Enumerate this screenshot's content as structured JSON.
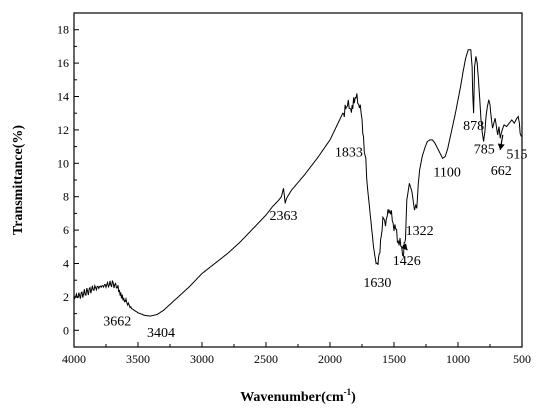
{
  "chart_data": {
    "type": "line",
    "title": "",
    "xlabel": "Wavenumber(cm",
    "xlabel_sup": "-1",
    "xlabel_close": ")",
    "ylabel": "Transmittance(%)",
    "xlim": [
      4000,
      500
    ],
    "ylim": [
      -1,
      19
    ],
    "x_reversed": true,
    "grid": false,
    "legend": "none",
    "x_ticks": [
      4000,
      3500,
      3000,
      2500,
      2000,
      1500,
      1000,
      500
    ],
    "y_ticks": [
      0,
      2,
      4,
      6,
      8,
      10,
      12,
      14,
      16,
      18
    ],
    "line_color": "#000000",
    "series": [
      {
        "x": [
          4000,
          3950,
          3900,
          3850,
          3800,
          3750,
          3700,
          3662,
          3640,
          3600,
          3550,
          3500,
          3450,
          3404,
          3350,
          3300,
          3200,
          3100,
          3000,
          2900,
          2800,
          2700,
          2600,
          2500,
          2450,
          2400,
          2380,
          2363,
          2350,
          2340,
          2300,
          2200,
          2100,
          2000,
          1950,
          1900,
          1870,
          1850,
          1833,
          1810,
          1790,
          1770,
          1750,
          1720,
          1700,
          1680,
          1660,
          1645,
          1630,
          1615,
          1600,
          1580,
          1560,
          1540,
          1520,
          1500,
          1480,
          1460,
          1440,
          1426,
          1410,
          1400,
          1380,
          1360,
          1340,
          1330,
          1322,
          1310,
          1300,
          1280,
          1260,
          1240,
          1220,
          1200,
          1180,
          1160,
          1140,
          1120,
          1100,
          1080,
          1060,
          1040,
          1020,
          1000,
          980,
          960,
          940,
          920,
          900,
          890,
          885,
          878,
          870,
          860,
          850,
          840,
          830,
          820,
          810,
          800,
          790,
          785,
          780,
          770,
          760,
          750,
          740,
          730,
          720,
          710,
          700,
          690,
          680,
          670,
          662,
          650,
          640,
          620,
          600,
          580,
          560,
          540,
          530,
          520,
          515,
          505
        ],
        "y": [
          2.0,
          2.1,
          2.3,
          2.5,
          2.6,
          2.7,
          2.8,
          2.6,
          2.3,
          1.8,
          1.3,
          1.05,
          0.9,
          0.85,
          0.95,
          1.2,
          1.9,
          2.6,
          3.4,
          4.0,
          4.6,
          5.3,
          6.1,
          6.9,
          7.4,
          7.8,
          8.0,
          8.5,
          7.6,
          7.9,
          8.4,
          9.3,
          10.3,
          11.4,
          12.2,
          13.0,
          13.3,
          13.5,
          13.3,
          14.0,
          13.8,
          13.6,
          12.5,
          10.0,
          8.0,
          6.5,
          5.0,
          4.2,
          3.9,
          4.5,
          5.6,
          6.8,
          6.4,
          7.4,
          6.8,
          6.3,
          5.8,
          5.2,
          5.0,
          4.7,
          5.5,
          7.8,
          8.8,
          8.3,
          7.2,
          7.5,
          7.3,
          8.8,
          9.6,
          10.4,
          10.9,
          11.3,
          11.4,
          11.4,
          11.2,
          10.9,
          10.6,
          10.3,
          10.4,
          10.9,
          11.6,
          12.3,
          13.0,
          13.8,
          14.6,
          15.5,
          16.3,
          16.8,
          16.8,
          15.8,
          14.2,
          13.0,
          15.8,
          16.4,
          16.0,
          15.0,
          13.8,
          12.6,
          11.8,
          11.3,
          11.9,
          12.4,
          12.9,
          13.4,
          13.8,
          13.5,
          12.7,
          12.1,
          12.4,
          12.7,
          12.2,
          11.7,
          12.2,
          11.5,
          11.8,
          12.1,
          12.3,
          12.2,
          12.4,
          12.6,
          12.4,
          12.7,
          12.8,
          12.4,
          11.8,
          11.6
        ]
      }
    ],
    "annotations": [
      {
        "text": "3662"
      },
      {
        "text": "3404"
      },
      {
        "text": "2363"
      },
      {
        "text": "1833"
      },
      {
        "text": "1630"
      },
      {
        "text": "1426"
      },
      {
        "text": "1322"
      },
      {
        "text": "1100"
      },
      {
        "text": "878"
      },
      {
        "text": "785"
      },
      {
        "text": "662"
      },
      {
        "text": "515"
      }
    ]
  }
}
